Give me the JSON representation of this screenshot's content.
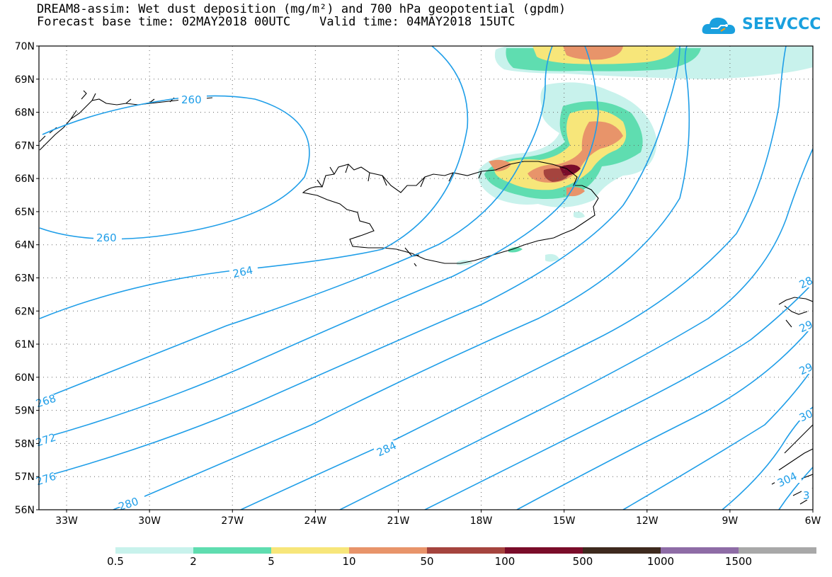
{
  "title": {
    "line1": "DREAM8-assim: Wet dust deposition (mg/m²) and 700 hPa geopotential (gpdm)",
    "line2": "Forecast base time: 02MAY2018 00UTC    Valid time: 04MAY2018 15UTC"
  },
  "logo": {
    "text": "SEEVCCC"
  },
  "axes": {
    "lat_labels": [
      "70N",
      "69N",
      "68N",
      "67N",
      "66N",
      "65N",
      "64N",
      "63N",
      "62N",
      "61N",
      "60N",
      "59N",
      "58N",
      "57N",
      "56N"
    ],
    "lon_labels": [
      "33W",
      "30W",
      "27W",
      "24W",
      "21W",
      "18W",
      "15W",
      "12W",
      "9W",
      "6W"
    ],
    "lat_range": [
      56,
      70
    ],
    "lon_range": [
      -34.0,
      -6.0
    ],
    "grid": "dotted"
  },
  "contours": {
    "variable": "700 hPa geopotential (gpdm)",
    "labels": [
      "260",
      "260",
      "264",
      "268",
      "272",
      "276",
      "280",
      "284",
      "28",
      "29",
      "29",
      "30",
      "304",
      "3"
    ]
  },
  "legend": {
    "labels": [
      "0.5",
      "2",
      "5",
      "10",
      "50",
      "100",
      "500",
      "1000",
      "1500"
    ],
    "colors": [
      "#c8f2ec",
      "#5fddb0",
      "#f7e67a",
      "#e8946a",
      "#a5443e",
      "#7a0c2a",
      "#3e2a1e",
      "#8e6ca6",
      "#a8a8a8"
    ]
  }
}
